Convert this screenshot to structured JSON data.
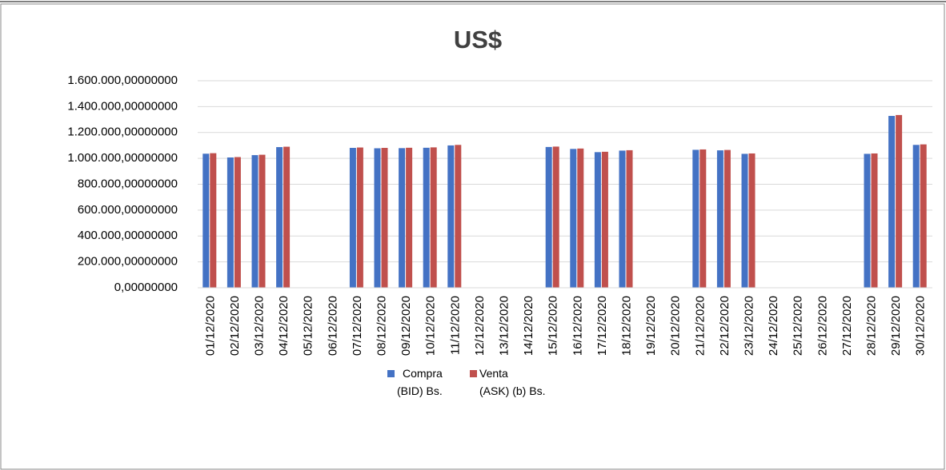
{
  "chart_data": {
    "type": "bar",
    "title": "US$",
    "categories": [
      "01/12/2020",
      "02/12/2020",
      "03/12/2020",
      "04/12/2020",
      "05/12/2020",
      "06/12/2020",
      "07/12/2020",
      "08/12/2020",
      "09/12/2020",
      "10/12/2020",
      "11/12/2020",
      "12/12/2020",
      "13/12/2020",
      "14/12/2020",
      "15/12/2020",
      "16/12/2020",
      "17/12/2020",
      "18/12/2020",
      "19/12/2020",
      "20/12/2020",
      "21/12/2020",
      "22/12/2020",
      "23/12/2020",
      "24/12/2020",
      "25/12/2020",
      "26/12/2020",
      "27/12/2020",
      "28/12/2020",
      "29/12/2020",
      "30/12/2020"
    ],
    "series": [
      {
        "name": "Compra\n(BID) Bs.",
        "color": "#4472c4",
        "values": [
          1036000,
          1007000,
          1025000,
          1087000,
          null,
          null,
          1081000,
          1078000,
          1079000,
          1082000,
          1100000,
          null,
          null,
          null,
          1088000,
          1073000,
          1048000,
          1060000,
          null,
          null,
          1066000,
          1062000,
          1035000,
          null,
          null,
          null,
          null,
          1035000,
          1328000,
          1104000
        ]
      },
      {
        "name": "Venta\n(ASK) (b) Bs.",
        "color": "#c0504d",
        "values": [
          1040000,
          1010000,
          1028000,
          1090000,
          null,
          null,
          1084000,
          1081000,
          1082000,
          1085000,
          1104000,
          null,
          null,
          null,
          1091000,
          1076000,
          1051000,
          1063000,
          null,
          null,
          1069000,
          1065000,
          1038000,
          null,
          null,
          null,
          null,
          1038000,
          1335000,
          1108000
        ]
      }
    ],
    "ylim": [
      0,
      1600000
    ],
    "yticks": [
      {
        "value": 0,
        "label": "0,00000000"
      },
      {
        "value": 200000,
        "label": "200.000,00000000"
      },
      {
        "value": 400000,
        "label": "400.000,00000000"
      },
      {
        "value": 600000,
        "label": "600.000,00000000"
      },
      {
        "value": 800000,
        "label": "800.000,00000000"
      },
      {
        "value": 1000000,
        "label": "1.000.000,00000000"
      },
      {
        "value": 1200000,
        "label": "1.200.000,00000000"
      },
      {
        "value": 1400000,
        "label": "1.400.000,00000000"
      },
      {
        "value": 1600000,
        "label": "1.600.000,00000000"
      }
    ],
    "grid": true,
    "legend": "bottom"
  }
}
